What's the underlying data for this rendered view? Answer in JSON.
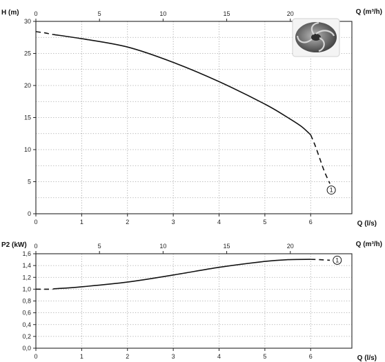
{
  "chart_data": [
    {
      "type": "line",
      "ylabel": "H (m)",
      "xlabel": "Q (l/s)",
      "x2label": "Q (m³/h)",
      "xlim": [
        0,
        6.9
      ],
      "ylim": [
        0,
        30
      ],
      "x2lim": [
        0,
        24.84
      ],
      "xticks": [
        "0",
        "1",
        "2",
        "3",
        "4",
        "5",
        "6"
      ],
      "x2ticks": [
        "0",
        "5",
        "10",
        "15",
        "20"
      ],
      "yticks": [
        "0",
        "5",
        "10",
        "15",
        "20",
        "25",
        "30"
      ],
      "grid": true,
      "series": [
        {
          "style": "dashed",
          "x": [
            0,
            0.1,
            0.2,
            0.3,
            0.38
          ],
          "y": [
            28.4,
            28.3,
            28.2,
            28.05,
            27.95
          ]
        },
        {
          "style": "solid",
          "x": [
            0.38,
            1,
            2,
            3,
            4,
            5,
            5.5,
            5.8,
            6.0
          ],
          "y": [
            27.95,
            27.3,
            26.0,
            23.6,
            20.6,
            17.1,
            15.0,
            13.6,
            12.3
          ]
        },
        {
          "style": "dashed",
          "x": [
            6.0,
            6.1,
            6.2,
            6.3,
            6.42
          ],
          "y": [
            12.3,
            10.6,
            8.6,
            6.6,
            4.7
          ]
        }
      ],
      "annotations": [
        {
          "text": "1",
          "x": 6.45,
          "y": 3.7
        }
      ],
      "inset_image": "impeller-photo"
    },
    {
      "type": "line",
      "ylabel": "P2 (kW)",
      "xlabel": "Q (l/s)",
      "x2label": "Q (m³/h)",
      "xlim": [
        0,
        6.9
      ],
      "ylim": [
        0,
        1.6
      ],
      "x2lim": [
        0,
        24.84
      ],
      "xticks": [
        "0",
        "1",
        "2",
        "3",
        "4",
        "5",
        "6"
      ],
      "x2ticks": [
        "0",
        "5",
        "10",
        "15",
        "20"
      ],
      "yticks": [
        "0,0",
        "0,2",
        "0,4",
        "0,6",
        "0,8",
        "1,0",
        "1,2",
        "1,4",
        "1,6"
      ],
      "grid": true,
      "series": [
        {
          "style": "dashed",
          "x": [
            0,
            0.2,
            0.38
          ],
          "y": [
            1.0,
            1.0,
            1.0
          ]
        },
        {
          "style": "solid",
          "x": [
            0.38,
            1,
            2,
            3,
            4,
            5,
            5.5,
            6.0
          ],
          "y": [
            1.005,
            1.04,
            1.12,
            1.24,
            1.37,
            1.47,
            1.5,
            1.505
          ]
        },
        {
          "style": "dashed",
          "x": [
            6.0,
            6.2,
            6.42
          ],
          "y": [
            1.505,
            1.5,
            1.49
          ]
        }
      ],
      "annotations": [
        {
          "text": "1",
          "x": 6.58,
          "y": 1.49
        }
      ]
    }
  ]
}
